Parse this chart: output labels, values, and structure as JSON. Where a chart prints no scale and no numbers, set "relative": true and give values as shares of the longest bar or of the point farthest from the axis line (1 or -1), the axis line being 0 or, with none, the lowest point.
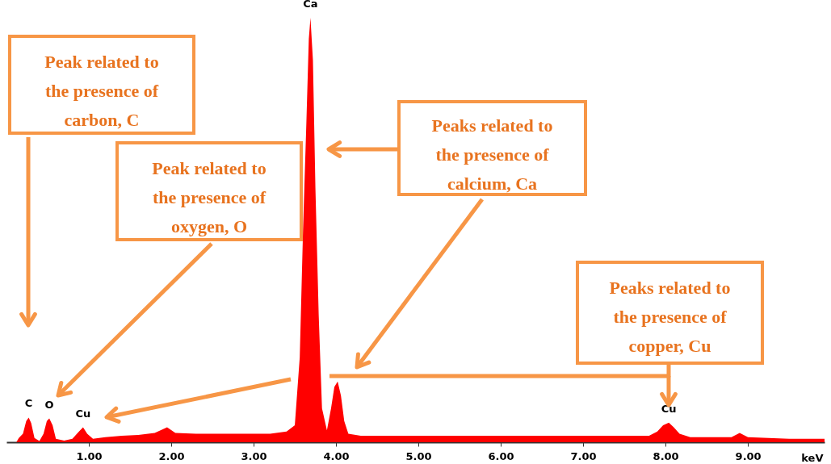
{
  "chart_data": {
    "type": "area",
    "relative": true,
    "xlabel": "keV",
    "xlim": [
      0,
      9.93
    ],
    "xticks": [
      {
        "value": 1,
        "label": "1.00"
      },
      {
        "value": 2,
        "label": "2.00"
      },
      {
        "value": 3,
        "label": "3.00"
      },
      {
        "value": 4,
        "label": "4.00"
      },
      {
        "value": 5,
        "label": "5.00"
      },
      {
        "value": 6,
        "label": "6.00"
      },
      {
        "value": 7,
        "label": "7.00"
      },
      {
        "value": 8,
        "label": "8.00"
      },
      {
        "value": 9,
        "label": "9.00"
      }
    ],
    "grid": false,
    "x": [
      0.12,
      0.15,
      0.2,
      0.24,
      0.27,
      0.3,
      0.34,
      0.4,
      0.45,
      0.49,
      0.52,
      0.56,
      0.6,
      0.7,
      0.8,
      0.88,
      0.93,
      0.98,
      1.05,
      1.2,
      1.4,
      1.6,
      1.8,
      1.95,
      2.05,
      2.3,
      2.6,
      2.9,
      3.2,
      3.4,
      3.5,
      3.56,
      3.6,
      3.64,
      3.67,
      3.69,
      3.72,
      3.75,
      3.79,
      3.83,
      3.89,
      3.94,
      3.98,
      4.02,
      4.06,
      4.1,
      4.15,
      4.3,
      5,
      6,
      7,
      7.8,
      7.9,
      7.97,
      8.04,
      8.1,
      8.17,
      8.3,
      8.8,
      8.9,
      9.0,
      9.5,
      9.93
    ],
    "series": [
      {
        "color": "#ff0000",
        "values": [
          0,
          0.01,
          0.02,
          0.05,
          0.058,
          0.045,
          0.01,
          0.003,
          0.02,
          0.05,
          0.056,
          0.04,
          0.008,
          0.004,
          0.008,
          0.025,
          0.035,
          0.02,
          0.008,
          0.012,
          0.015,
          0.017,
          0.022,
          0.035,
          0.022,
          0.02,
          0.02,
          0.02,
          0.02,
          0.025,
          0.04,
          0.2,
          0.5,
          0.75,
          0.95,
          1,
          0.9,
          0.6,
          0.3,
          0.08,
          0.028,
          0.08,
          0.13,
          0.143,
          0.11,
          0.05,
          0.02,
          0.015,
          0.015,
          0.015,
          0.015,
          0.015,
          0.025,
          0.04,
          0.046,
          0.035,
          0.02,
          0.012,
          0.012,
          0.022,
          0.012,
          0.008,
          0.008
        ]
      }
    ],
    "annotations": [
      {
        "text": "C",
        "x": 0.27,
        "y": 0.058
      },
      {
        "text": "O",
        "x": 0.52,
        "y": 0.056
      },
      {
        "text": "Cu",
        "x": 0.93,
        "y": 0.035
      },
      {
        "text": "Ca",
        "x": 3.69,
        "y": 1
      },
      {
        "text": "Cu",
        "x": 8.04,
        "y": 0.046
      },
      "Peak related to the presence of carbon, C",
      "Peak related to the presence of oxygen, O",
      "Peaks related to the presence of calcium, Ca",
      "Peaks related to the presence of copper, Cu"
    ]
  }
}
